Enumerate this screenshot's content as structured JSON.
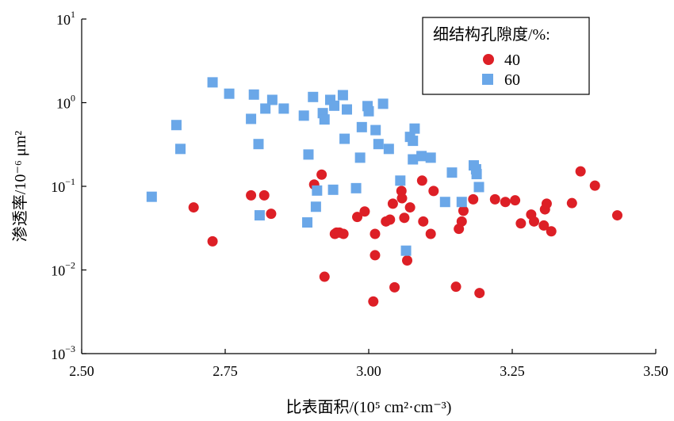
{
  "chart_data": {
    "type": "scatter",
    "title": "",
    "xlabel": "比表面积/(10⁵ cm²·cm⁻³)",
    "ylabel": "渗透率/10⁻⁶ μm²",
    "xlim": [
      2.5,
      3.5
    ],
    "ylim": [
      0.001,
      10
    ],
    "yscale": "log",
    "grid": false,
    "legend_position": "top-right",
    "legend_title": "细结构孔隙度/%:",
    "x_ticks": [
      "2.50",
      "2.75",
      "3.00",
      "3.25",
      "3.50"
    ],
    "x_tick_values": [
      2.5,
      2.75,
      3.0,
      3.25,
      3.5
    ],
    "y_ticks": [
      {
        "base": "10",
        "exp": "1",
        "value": 10
      },
      {
        "base": "10",
        "exp": "0",
        "value": 1
      },
      {
        "base": "10",
        "exp": "−1",
        "value": 0.1
      },
      {
        "base": "10",
        "exp": "−2",
        "value": 0.01
      },
      {
        "base": "10",
        "exp": "−3",
        "value": 0.001
      }
    ],
    "series": [
      {
        "name": "40",
        "marker": "circle",
        "color": "#dd1f26",
        "points": [
          [
            2.695,
            0.056
          ],
          [
            2.728,
            0.022
          ],
          [
            2.795,
            0.078
          ],
          [
            2.818,
            0.078
          ],
          [
            2.83,
            0.047
          ],
          [
            2.905,
            0.105
          ],
          [
            2.918,
            0.138
          ],
          [
            2.923,
            0.0083
          ],
          [
            2.941,
            0.027
          ],
          [
            2.944,
            0.028
          ],
          [
            2.949,
            0.028
          ],
          [
            2.956,
            0.027
          ],
          [
            2.98,
            0.043
          ],
          [
            2.993,
            0.05
          ],
          [
            3.008,
            0.0042
          ],
          [
            3.011,
            0.027
          ],
          [
            3.011,
            0.015
          ],
          [
            3.03,
            0.038
          ],
          [
            3.037,
            0.04
          ],
          [
            3.042,
            0.062
          ],
          [
            3.045,
            0.0062
          ],
          [
            3.057,
            0.088
          ],
          [
            3.058,
            0.072
          ],
          [
            3.062,
            0.042
          ],
          [
            3.067,
            0.013
          ],
          [
            3.072,
            0.056
          ],
          [
            3.093,
            0.117
          ],
          [
            3.095,
            0.038
          ],
          [
            3.108,
            0.027
          ],
          [
            3.113,
            0.088
          ],
          [
            3.152,
            0.0063
          ],
          [
            3.157,
            0.031
          ],
          [
            3.162,
            0.038
          ],
          [
            3.165,
            0.051
          ],
          [
            3.182,
            0.07
          ],
          [
            3.193,
            0.0053
          ],
          [
            3.22,
            0.07
          ],
          [
            3.238,
            0.065
          ],
          [
            3.255,
            0.068
          ],
          [
            3.265,
            0.036
          ],
          [
            3.283,
            0.046
          ],
          [
            3.288,
            0.038
          ],
          [
            3.305,
            0.034
          ],
          [
            3.307,
            0.053
          ],
          [
            3.31,
            0.062
          ],
          [
            3.318,
            0.029
          ],
          [
            3.354,
            0.063
          ],
          [
            3.369,
            0.151
          ],
          [
            3.394,
            0.102
          ],
          [
            3.433,
            0.045
          ]
        ]
      },
      {
        "name": "60",
        "marker": "square",
        "color": "#6aa7e8",
        "points": [
          [
            2.622,
            0.075
          ],
          [
            2.665,
            0.54
          ],
          [
            2.672,
            0.28
          ],
          [
            2.728,
            1.75
          ],
          [
            2.757,
            1.28
          ],
          [
            2.795,
            0.64
          ],
          [
            2.8,
            1.25
          ],
          [
            2.808,
            0.32
          ],
          [
            2.81,
            0.045
          ],
          [
            2.82,
            0.85
          ],
          [
            2.832,
            1.08
          ],
          [
            2.852,
            0.85
          ],
          [
            2.887,
            0.7
          ],
          [
            2.893,
            0.037
          ],
          [
            2.895,
            0.24
          ],
          [
            2.903,
            1.17
          ],
          [
            2.908,
            0.057
          ],
          [
            2.91,
            0.089
          ],
          [
            2.92,
            0.75
          ],
          [
            2.923,
            0.63
          ],
          [
            2.933,
            1.08
          ],
          [
            2.938,
            0.091
          ],
          [
            2.94,
            0.92
          ],
          [
            2.955,
            1.23
          ],
          [
            2.958,
            0.37
          ],
          [
            2.962,
            0.83
          ],
          [
            2.978,
            0.095
          ],
          [
            2.985,
            0.22
          ],
          [
            2.988,
            0.51
          ],
          [
            2.998,
            0.91
          ],
          [
            3.0,
            0.79
          ],
          [
            3.012,
            0.47
          ],
          [
            3.017,
            0.32
          ],
          [
            3.025,
            0.97
          ],
          [
            3.035,
            0.28
          ],
          [
            3.055,
            0.117
          ],
          [
            3.065,
            0.017
          ],
          [
            3.072,
            0.39
          ],
          [
            3.077,
            0.35
          ],
          [
            3.077,
            0.21
          ],
          [
            3.08,
            0.49
          ],
          [
            3.092,
            0.23
          ],
          [
            3.108,
            0.22
          ],
          [
            3.133,
            0.065
          ],
          [
            3.145,
            0.146
          ],
          [
            3.162,
            0.065
          ],
          [
            3.183,
            0.178
          ],
          [
            3.187,
            0.16
          ],
          [
            3.188,
            0.14
          ],
          [
            3.192,
            0.098
          ]
        ]
      }
    ]
  }
}
